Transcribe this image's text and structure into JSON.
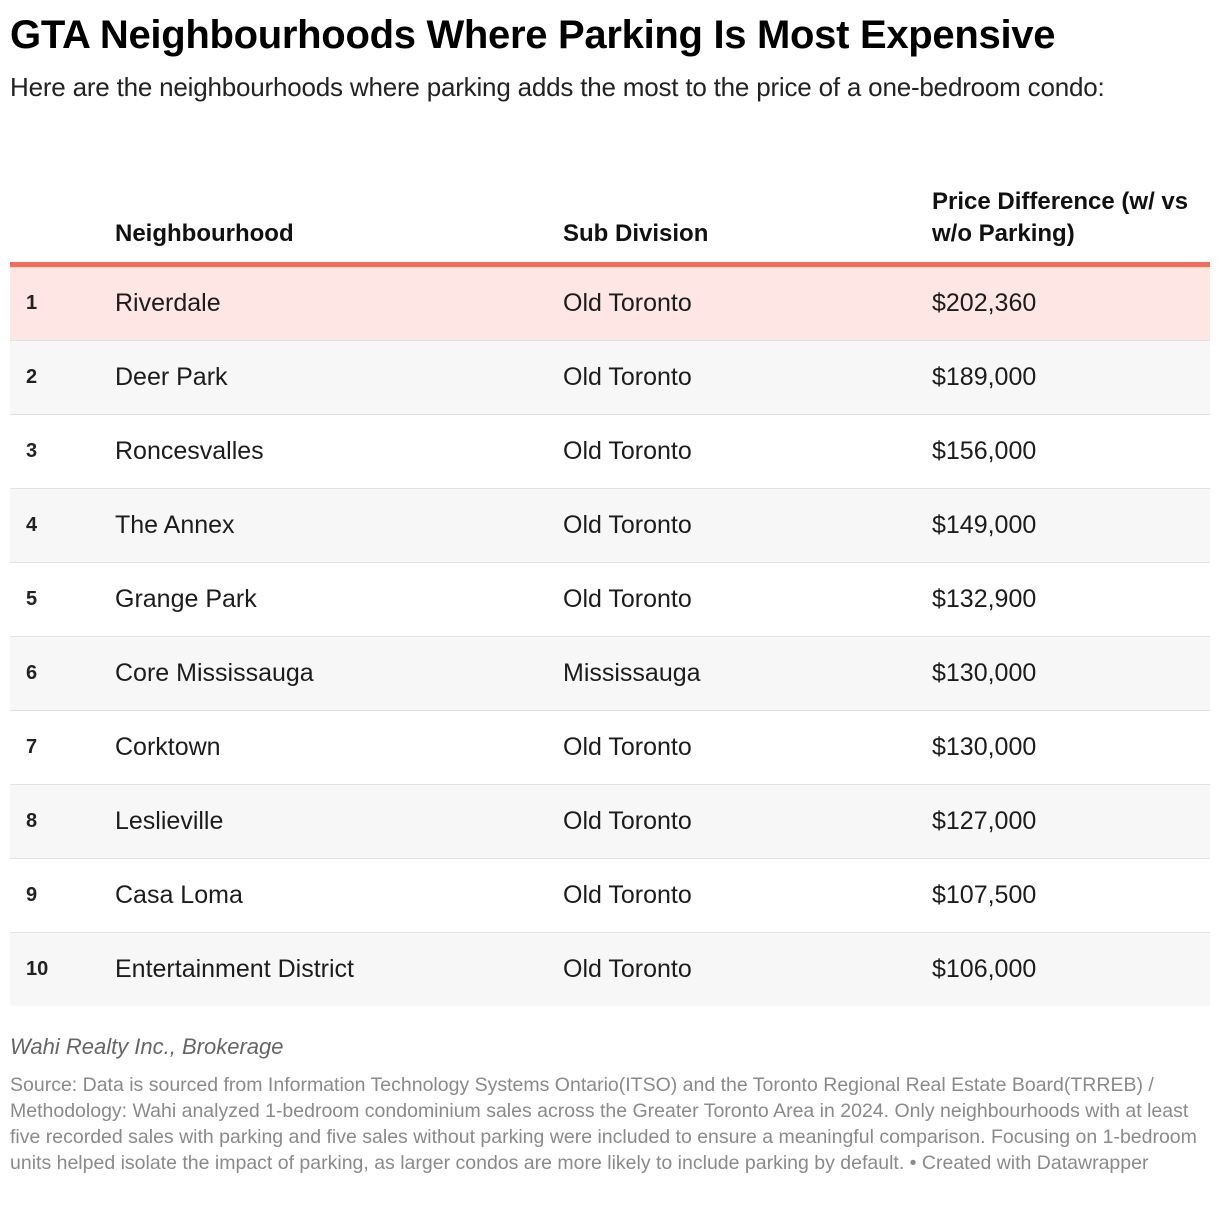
{
  "title": "GTA Neighbourhoods Where Parking Is Most Expensive",
  "subtitle": "Here are the neighbourhoods where parking adds the most to the price of a one-bedroom condo:",
  "chart_data": {
    "type": "table",
    "columns": [
      "",
      "Neighbourhood",
      "Sub Division",
      "Price Difference (w/ vs w/o Parking)"
    ],
    "highlight_color": "#fde6e3",
    "header_rule_color": "#ec6f5f",
    "rows": [
      {
        "rank": "1",
        "neighbourhood": "Riverdale",
        "subdivision": "Old Toronto",
        "price": "$202,360"
      },
      {
        "rank": "2",
        "neighbourhood": "Deer Park",
        "subdivision": "Old Toronto",
        "price": "$189,000"
      },
      {
        "rank": "3",
        "neighbourhood": "Roncesvalles",
        "subdivision": "Old Toronto",
        "price": "$156,000"
      },
      {
        "rank": "4",
        "neighbourhood": "The Annex",
        "subdivision": "Old Toronto",
        "price": "$149,000"
      },
      {
        "rank": "5",
        "neighbourhood": "Grange Park",
        "subdivision": "Old Toronto",
        "price": "$132,900"
      },
      {
        "rank": "6",
        "neighbourhood": "Core Mississauga",
        "subdivision": "Mississauga",
        "price": "$130,000"
      },
      {
        "rank": "7",
        "neighbourhood": "Corktown",
        "subdivision": "Old Toronto",
        "price": "$130,000"
      },
      {
        "rank": "8",
        "neighbourhood": "Leslieville",
        "subdivision": "Old Toronto",
        "price": "$127,000"
      },
      {
        "rank": "9",
        "neighbourhood": "Casa Loma",
        "subdivision": "Old Toronto",
        "price": "$107,500"
      },
      {
        "rank": "10",
        "neighbourhood": "Entertainment District",
        "subdivision": "Old Toronto",
        "price": "$106,000"
      }
    ]
  },
  "footer": {
    "brand": "Wahi Realty Inc., Brokerage",
    "source": "Source: Data is sourced from Information Technology Systems Ontario(ITSO) and the Toronto Regional Real Estate Board(TRREB) / Methodology: Wahi analyzed 1-bedroom condominium sales across the Greater Toronto Area in 2024. Only neighbourhoods with at least five recorded sales with parking and five sales without parking were included to ensure a meaningful comparison. Focusing on 1-bedroom units helped isolate the impact of parking, as larger condos are more likely to include parking by default. • Created with Datawrapper"
  }
}
